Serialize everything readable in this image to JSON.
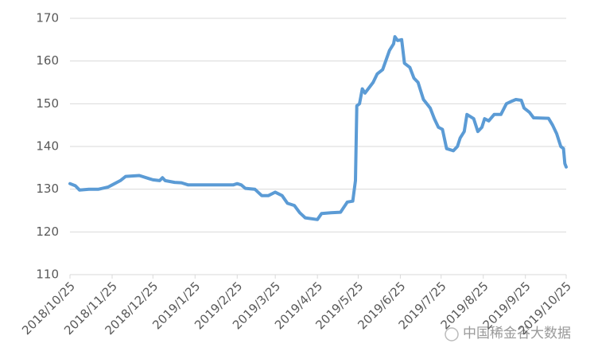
{
  "chart_data": {
    "type": "line",
    "x": [
      "2018/10/25",
      "2018/10/29",
      "2018/11/1",
      "2018/11/8",
      "2018/11/15",
      "2018/11/22",
      "2018/11/25",
      "2018/12/1",
      "2018/12/5",
      "2018/12/15",
      "2018/12/22",
      "2018/12/25",
      "2018/12/30",
      "2019/1/1",
      "2019/1/3",
      "2019/1/10",
      "2019/1/15",
      "2019/1/20",
      "2019/1/25",
      "2019/2/10",
      "2019/2/22",
      "2019/2/25",
      "2019/2/28",
      "2019/3/3",
      "2019/3/10",
      "2019/3/15",
      "2019/3/20",
      "2019/3/25",
      "2019/3/30",
      "2019/4/3",
      "2019/4/8",
      "2019/4/12",
      "2019/4/16",
      "2019/4/25",
      "2019/4/28",
      "2019/5/5",
      "2019/5/12",
      "2019/5/17",
      "2019/5/21",
      "2019/5/23",
      "2019/5/24",
      "2019/5/26",
      "2019/5/28",
      "2019/5/30",
      "2019/6/5",
      "2019/6/8",
      "2019/6/12",
      "2019/6/17",
      "2019/6/20",
      "2019/6/21",
      "2019/6/23",
      "2019/6/26",
      "2019/6/28",
      "2019/7/2",
      "2019/7/5",
      "2019/7/8",
      "2019/7/12",
      "2019/7/17",
      "2019/7/20",
      "2019/7/23",
      "2019/7/26",
      "2019/7/29",
      "2019/8/3",
      "2019/8/6",
      "2019/8/8",
      "2019/8/11",
      "2019/8/13",
      "2019/8/18",
      "2019/8/21",
      "2019/8/24",
      "2019/8/26",
      "2019/8/29",
      "2019/9/2",
      "2019/9/7",
      "2019/9/11",
      "2019/9/15",
      "2019/9/18",
      "2019/9/22",
      "2019/9/24",
      "2019/9/28",
      "2019/10/1",
      "2019/10/12",
      "2019/10/15",
      "2019/10/18",
      "2019/10/21",
      "2019/10/23",
      "2019/10/24",
      "2019/10/25"
    ],
    "series": [
      {
        "color": "#5b9bd5",
        "values": [
          131.3,
          130.8,
          129.8,
          130,
          130,
          130.5,
          131,
          132,
          133,
          133.2,
          132.5,
          132.2,
          132,
          132.7,
          132,
          131.6,
          131.5,
          131,
          131,
          131,
          131,
          131.3,
          131,
          130.2,
          130,
          128.5,
          128.5,
          129.3,
          128.5,
          126.7,
          126.2,
          124.5,
          123.3,
          122.9,
          124.3,
          124.5,
          124.6,
          127,
          127.2,
          132,
          149.5,
          150,
          153.5,
          152.5,
          155,
          157,
          158,
          162.5,
          164,
          165.7,
          164.8,
          165,
          159.5,
          158.5,
          156,
          155,
          151,
          149,
          146.5,
          144.5,
          144,
          139.5,
          139,
          140,
          142,
          143.5,
          147.5,
          146.5,
          143.5,
          144.5,
          146.5,
          146,
          147.5,
          147.5,
          150,
          150.6,
          151,
          150.8,
          149,
          148,
          146.7,
          146.6,
          145,
          143,
          140,
          139.5,
          136,
          135.2
        ]
      }
    ],
    "xlim": [
      "2018/10/25",
      "2019/10/25"
    ],
    "xticks": [
      "2018/10/25",
      "2018/11/25",
      "2018/12/25",
      "2019/1/25",
      "2019/2/25",
      "2019/3/25",
      "2019/4/25",
      "2019/5/25",
      "2019/6/25",
      "2019/7/25",
      "2019/8/25",
      "2019/9/25",
      "2019/10/25"
    ],
    "ylim": [
      110,
      170
    ],
    "yticks": [
      110,
      120,
      130,
      140,
      150,
      160,
      170
    ],
    "grid": true,
    "watermark": "中国稀金谷大数据"
  }
}
